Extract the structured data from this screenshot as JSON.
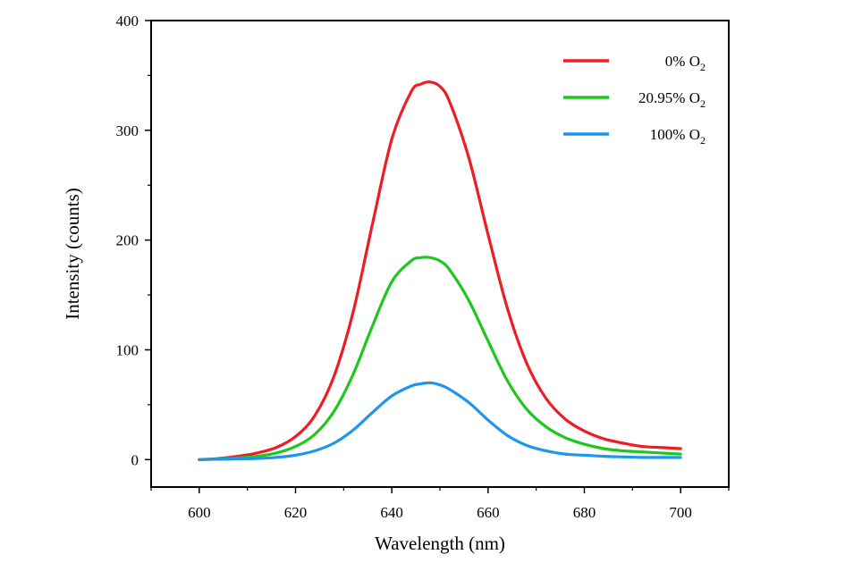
{
  "chart_data": {
    "type": "line",
    "title": "",
    "xlabel": "Wavelength (nm)",
    "ylabel": "Intensity (counts)",
    "xlim": [
      590,
      710
    ],
    "ylim": [
      -25,
      400
    ],
    "x_ticks": [
      600,
      620,
      640,
      660,
      680,
      700
    ],
    "y_ticks": [
      0,
      100,
      200,
      300,
      400
    ],
    "grid": false,
    "legend_position": "top-right",
    "x": [
      600,
      604,
      608,
      612,
      616,
      620,
      624,
      628,
      632,
      636,
      640,
      644,
      646,
      648,
      650,
      652,
      656,
      660,
      664,
      668,
      672,
      676,
      680,
      684,
      688,
      692,
      696,
      700
    ],
    "series": [
      {
        "name": "0% O2",
        "legend_main": "0% O",
        "legend_sub": "2",
        "color": "#ee1c25",
        "values": [
          0,
          1,
          3,
          6,
          11,
          21,
          40,
          76,
          135,
          215,
          292,
          335,
          342,
          344,
          340,
          326,
          275,
          205,
          138,
          88,
          56,
          37,
          26,
          19,
          15,
          12,
          11,
          10
        ]
      },
      {
        "name": "20.95% O2",
        "legend_main": "20.95% O",
        "legend_sub": "2",
        "color": "#1ec71e",
        "values": [
          0,
          0.5,
          1.5,
          3,
          6,
          12,
          23,
          44,
          78,
          122,
          162,
          181,
          184,
          184,
          181,
          173,
          145,
          108,
          72,
          46,
          30,
          20,
          14,
          10,
          8,
          7,
          6,
          5
        ]
      },
      {
        "name": "100% O2",
        "legend_main": "100% O",
        "legend_sub": "2",
        "color": "#1e96ee",
        "values": [
          0,
          0.3,
          0.6,
          1,
          2,
          4,
          8,
          15,
          27,
          43,
          58,
          67,
          69,
          70,
          68,
          64,
          52,
          36,
          22,
          13,
          8,
          5,
          4,
          3,
          2.5,
          2,
          2,
          2
        ]
      }
    ]
  }
}
